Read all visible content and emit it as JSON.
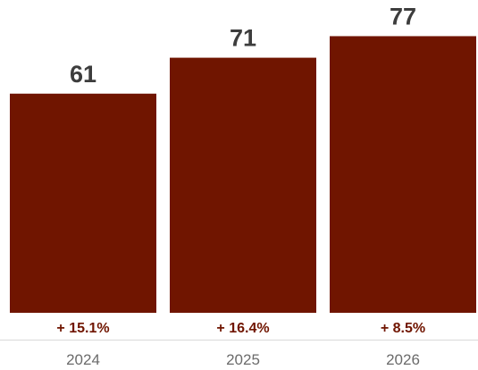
{
  "chart_data": {
    "type": "bar",
    "categories": [
      "2024",
      "2025",
      "2026"
    ],
    "values": [
      61,
      71,
      77
    ],
    "value_labels": [
      "61",
      "71",
      "77"
    ],
    "growth_labels": [
      "+ 15.1%",
      "+ 16.4%",
      "+ 8.5%"
    ],
    "title": "",
    "xlabel": "",
    "ylabel": "",
    "ylim": [
      0,
      80
    ],
    "grid": false,
    "legend": "none",
    "colors": {
      "bar": "#701500",
      "growth_text": "#701500",
      "value_text": "#3d3d3d",
      "tick_text": "#6b6b6b",
      "axis": "#d9d9d9"
    }
  }
}
